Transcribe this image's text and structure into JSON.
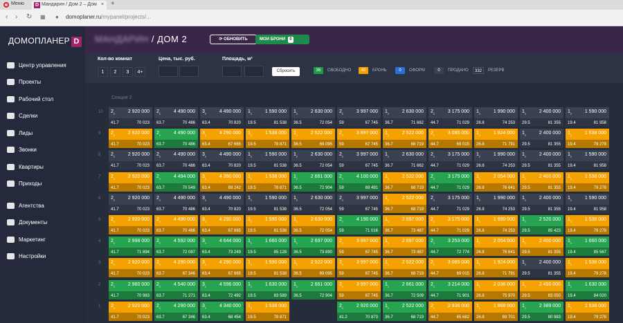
{
  "browser": {
    "menu_label": "Меню",
    "tab_title": "Мандарин / Дом 2 – Дом",
    "tab_icon": "D",
    "url_domain": "domoplaner.ru",
    "url_path": "/mypanel/projects/..."
  },
  "sidebar": {
    "logo": "ДОМОПЛАНЕР",
    "logo_mark": "D",
    "items": [
      {
        "label": "Центр управления",
        "icon": "gauge-icon"
      },
      {
        "label": "Проекты",
        "icon": "globe-icon"
      },
      {
        "label": "Рабочий стол",
        "icon": "table-icon"
      },
      {
        "label": "Сделки",
        "icon": "bookmark-icon"
      },
      {
        "label": "Лиды",
        "icon": "users-icon"
      },
      {
        "label": "Звонки",
        "icon": "phone-icon"
      },
      {
        "label": "Квартиры",
        "icon": "list-icon"
      },
      {
        "label": "Приходы",
        "icon": "card-icon"
      },
      {
        "label": "Агентства",
        "icon": "agency-icon"
      },
      {
        "label": "Документы",
        "icon": "document-icon"
      },
      {
        "label": "Маркетинг",
        "icon": "megaphone-icon"
      },
      {
        "label": "Настройки",
        "icon": "gear-icon"
      }
    ]
  },
  "header": {
    "project": "МАНДАРИН",
    "title": "/ ДОМ 2",
    "refresh": "ОБНОВИТЬ",
    "my_bookings": "МОИ БРОНИ",
    "my_bookings_count": "0"
  },
  "filters": {
    "rooms_label": "Кол-во комнат",
    "rooms": [
      "1",
      "2",
      "3",
      "4+"
    ],
    "price_label": "Цена, тыс. руб.",
    "area_label": "Площадь, м²",
    "reset": "Сбросить",
    "legend": [
      {
        "count": "36",
        "label": "СВОБОДНО",
        "color": "#1f9b48"
      },
      {
        "count": "40",
        "label": "БРОНЬ",
        "color": "#f5a100"
      },
      {
        "count": "0",
        "label": "ОФОРМ",
        "color": "#2b6fd6"
      },
      {
        "count": "0",
        "label": "ПРОДАНО",
        "color": "#3a4252"
      },
      {
        "count": "332",
        "label": "РЕЗЕРВ",
        "color": "#2c3344"
      }
    ]
  },
  "grid": {
    "section": "Секция 2",
    "floors": [
      "10",
      "9",
      "8",
      "7",
      "6",
      "5",
      "4",
      "3",
      "2",
      "1"
    ],
    "columns": [
      {
        "rooms": "2",
        "area": "41.7",
        "price": "2 920 000",
        "ppm": "70 023"
      },
      {
        "rooms": "2",
        "area": "63.7",
        "price": "4 490 000",
        "ppm": "70 486"
      },
      {
        "rooms": "3",
        "area": "63.4",
        "price": "4 490 000",
        "ppm": "70 820"
      },
      {
        "rooms": "1",
        "area": "19.5",
        "price": "1 590 000",
        "ppm": "81 538"
      },
      {
        "rooms": "1",
        "area": "36.5",
        "price": "2 630 000",
        "ppm": "72 054"
      },
      {
        "rooms": "2",
        "area": "59",
        "price": "3 997 000",
        "ppm": "67 745"
      },
      {
        "rooms": "1",
        "area": "36.7",
        "price": "2 630 000",
        "ppm": "71 662"
      },
      {
        "rooms": "2",
        "area": "44.7",
        "price": "3 175 000",
        "ppm": "71 029"
      },
      {
        "rooms": "1",
        "area": "26.8",
        "price": "1 990 000",
        "ppm": "74 253"
      },
      {
        "rooms": "1",
        "area": "29.5",
        "price": "2 400 000",
        "ppm": "81 355"
      },
      {
        "rooms": "1",
        "area": "19.4",
        "price": "1 590 000",
        "ppm": "81 958"
      }
    ],
    "rows": [
      [
        {
          "s": "n"
        },
        {
          "s": "n"
        },
        {
          "s": "n"
        },
        {
          "s": "n"
        },
        {
          "s": "n"
        },
        {
          "s": "n"
        },
        {
          "s": "n"
        },
        {
          "s": "n"
        },
        {
          "s": "n"
        },
        {
          "s": "n"
        },
        {
          "s": "n"
        }
      ],
      [
        {
          "s": "b"
        },
        {
          "s": "s"
        },
        {
          "s": "b",
          "price": "4 290 000",
          "ppm": "67 665"
        },
        {
          "s": "b",
          "price": "1 538 000",
          "ppm": "78 871"
        },
        {
          "s": "b",
          "price": "2 522 000",
          "ppm": "69 095"
        },
        {
          "s": "b",
          "price": "3 997 000",
          "ppm": "67 745"
        },
        {
          "s": "b",
          "price": "2 522 000",
          "ppm": "68 719"
        },
        {
          "s": "b",
          "price": "3 085 000",
          "ppm": "69 015"
        },
        {
          "s": "b",
          "price": "1 924 000",
          "ppm": "71 791"
        },
        {
          "s": "n"
        },
        {
          "s": "b",
          "price": "1 538 000",
          "ppm": "79 278"
        }
      ],
      [
        {
          "s": "n"
        },
        {
          "s": "n"
        },
        {
          "s": "n"
        },
        {
          "s": "n"
        },
        {
          "s": "n"
        },
        {
          "s": "n"
        },
        {
          "s": "n"
        },
        {
          "s": "n"
        },
        {
          "s": "n"
        },
        {
          "s": "n"
        },
        {
          "s": "n"
        }
      ],
      [
        {
          "s": "b"
        },
        {
          "s": "s",
          "price": "4 494 000",
          "ppm": "70 549"
        },
        {
          "s": "b",
          "price": "4 390 000",
          "ppm": "69 242"
        },
        {
          "s": "b",
          "price": "1 538 000",
          "ppm": "78 871"
        },
        {
          "s": "s",
          "price": "2 661 000",
          "ppm": "72 904"
        },
        {
          "s": "s",
          "price": "4 100 000",
          "ppm": "69 491"
        },
        {
          "s": "b",
          "price": "2 522 000",
          "ppm": "68 719"
        },
        {
          "s": "s"
        },
        {
          "s": "b",
          "price": "2 054 000",
          "ppm": "76 641"
        },
        {
          "s": "b"
        },
        {
          "s": "b",
          "price": "1 538 000",
          "ppm": "79 278"
        }
      ],
      [
        {
          "s": "n"
        },
        {
          "s": "n"
        },
        {
          "s": "n"
        },
        {
          "s": "n"
        },
        {
          "s": "n"
        },
        {
          "s": "n"
        },
        {
          "s": "b",
          "price": "2 522 000",
          "ppm": "68 719"
        },
        {
          "s": "n"
        },
        {
          "s": "n"
        },
        {
          "s": "n"
        },
        {
          "s": "n"
        }
      ],
      [
        {
          "s": "b"
        },
        {
          "s": "b"
        },
        {
          "s": "b",
          "price": "4 290 000",
          "ppm": "67 665"
        },
        {
          "s": "b"
        },
        {
          "s": "b"
        },
        {
          "s": "s",
          "price": "4 190 000",
          "ppm": "71 016"
        },
        {
          "s": "b",
          "price": "2 697 000",
          "ppm": "73 487"
        },
        {
          "s": "b"
        },
        {
          "s": "b"
        },
        {
          "s": "s",
          "price": "2 520 000",
          "ppm": "85 423"
        },
        {
          "s": "b",
          "price": "1 538 000",
          "ppm": "79 278"
        }
      ],
      [
        {
          "s": "s",
          "price": "2 998 000",
          "ppm": "71 894"
        },
        {
          "s": "s",
          "price": "4 592 000",
          "ppm": "72 087"
        },
        {
          "s": "s",
          "price": "4 644 000",
          "ppm": "73 249"
        },
        {
          "s": "s",
          "price": "1 660 000",
          "ppm": "85 128"
        },
        {
          "s": "s",
          "price": "2 697 000",
          "ppm": "73 890"
        },
        {
          "s": "b"
        },
        {
          "s": "b",
          "price": "2 697 000",
          "ppm": "73 487"
        },
        {
          "s": "s",
          "price": "3 253 000",
          "ppm": "72 774"
        },
        {
          "s": "b",
          "price": "2 054 000",
          "ppm": "76 641"
        },
        {
          "s": "b"
        },
        {
          "s": "s",
          "price": "1 660 000",
          "ppm": "85 567"
        }
      ],
      [
        {
          "s": "b"
        },
        {
          "s": "b",
          "price": "4 290 000",
          "ppm": "67 346"
        },
        {
          "s": "b",
          "price": "4 290 000",
          "ppm": "67 665"
        },
        {
          "s": "b"
        },
        {
          "s": "b",
          "price": "2 522 000",
          "ppm": "69 095"
        },
        {
          "s": "b",
          "price": "3 997 000",
          "ppm": "67 745"
        },
        {
          "s": "b",
          "price": "2 522 000",
          "ppm": "68 719"
        },
        {
          "s": "b",
          "price": "3 085 000",
          "ppm": "69 015"
        },
        {
          "s": "b",
          "price": "1 924 000",
          "ppm": "71 791"
        },
        {
          "s": "n"
        },
        {
          "s": "b",
          "price": "1 538 000",
          "ppm": "79 278"
        }
      ],
      [
        {
          "s": "s",
          "price": "2 960 000",
          "ppm": "70 983"
        },
        {
          "s": "s",
          "price": "4 540 000",
          "ppm": "71 271"
        },
        {
          "s": "s",
          "price": "4 596 000",
          "ppm": "72 492"
        },
        {
          "s": "s",
          "price": "1 630 000",
          "ppm": "83 589"
        },
        {
          "s": "s",
          "price": "2 661 000",
          "ppm": "72 904"
        },
        {
          "s": "b"
        },
        {
          "s": "s",
          "price": "2 661 000",
          "ppm": "72 509"
        },
        {
          "s": "s",
          "price": "3 214 000",
          "ppm": "71 901"
        },
        {
          "s": "b",
          "price": "2 036 000",
          "ppm": "75 970"
        },
        {
          "s": "b",
          "price": "2 450 000",
          "ppm": "83 050"
        },
        {
          "s": "s",
          "price": "1 630 000",
          "ppm": "84 020"
        }
      ],
      [
        {
          "s": "b"
        },
        {
          "s": "s",
          "price": "4 290 000",
          "ppm": "67 346"
        },
        {
          "s": "s",
          "price": "4 340 000",
          "ppm": "68 454"
        },
        {
          "s": "b",
          "price": "1 538 000",
          "ppm": "78 871"
        },
        {
          "s": "x"
        },
        {
          "s": "s",
          "area": "41.2",
          "price": "2 920 000",
          "ppm": "70 873"
        },
        {
          "s": "s",
          "price": "2 522 000",
          "ppm": "68 719"
        },
        {
          "s": "b",
          "price": "2 936 000",
          "ppm": "65 682"
        },
        {
          "s": "b",
          "price": "1 868 000",
          "ppm": "69 701"
        },
        {
          "s": "s",
          "price": "2 389 000",
          "ppm": "80 983"
        },
        {
          "s": "b",
          "price": "1 538 000",
          "ppm": "79 278"
        }
      ]
    ]
  }
}
